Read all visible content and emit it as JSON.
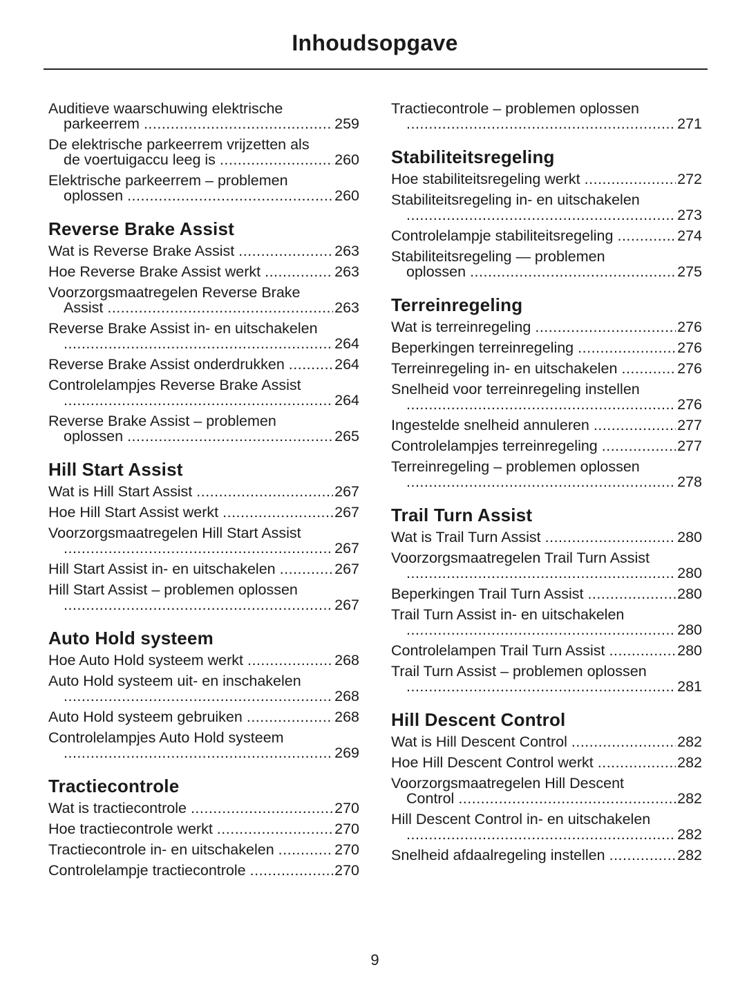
{
  "title": "Inhoudsopgave",
  "page_number": "9",
  "columns": [
    [
      {
        "heading": "",
        "entries": [
          {
            "text": "Auditieve waarschuwing elektrische",
            "cont": "parkeerrem",
            "page": "259"
          },
          {
            "text": "De elektrische parkeerrem vrijzetten als",
            "cont": "de voertuigaccu leeg is",
            "page": "260"
          },
          {
            "text": "Elektrische parkeerrem – problemen",
            "cont": "oplossen",
            "page": "260"
          }
        ]
      },
      {
        "heading": "Reverse Brake Assist",
        "entries": [
          {
            "text": "Wat is Reverse Brake Assist",
            "page": "263"
          },
          {
            "text": "Hoe Reverse Brake Assist werkt",
            "page": "263"
          },
          {
            "text": "Voorzorgsmaatregelen Reverse Brake",
            "cont": "Assist",
            "page": "263"
          },
          {
            "text": "Reverse Brake Assist in- en uitschakelen",
            "cont": "",
            "page": "264"
          },
          {
            "text": "Reverse Brake Assist onderdrukken",
            "page": "264"
          },
          {
            "text": "Controlelampjes Reverse Brake Assist",
            "cont": "",
            "page": "264"
          },
          {
            "text": "Reverse Brake Assist – problemen",
            "cont": "oplossen",
            "page": "265"
          }
        ]
      },
      {
        "heading": "Hill Start Assist",
        "entries": [
          {
            "text": "Wat is Hill Start Assist",
            "page": "267"
          },
          {
            "text": "Hoe Hill Start Assist werkt",
            "page": "267"
          },
          {
            "text": "Voorzorgsmaatregelen Hill Start Assist",
            "cont": "",
            "page": "267"
          },
          {
            "text": "Hill Start Assist in- en uitschakelen",
            "page": "267"
          },
          {
            "text": "Hill Start Assist – problemen oplossen",
            "cont": "",
            "page": "267"
          }
        ]
      },
      {
        "heading": "Auto Hold systeem",
        "entries": [
          {
            "text": "Hoe Auto Hold systeem werkt",
            "page": "268"
          },
          {
            "text": "Auto Hold systeem uit- en inschakelen",
            "cont": "",
            "page": "268"
          },
          {
            "text": "Auto Hold systeem gebruiken",
            "page": "268"
          },
          {
            "text": "Controlelampjes Auto Hold systeem",
            "cont": "",
            "page": "269"
          }
        ]
      },
      {
        "heading": "Tractiecontrole",
        "entries": [
          {
            "text": "Wat is tractiecontrole",
            "page": "270"
          },
          {
            "text": "Hoe tractiecontrole werkt",
            "page": "270"
          },
          {
            "text": "Tractiecontrole in- en uitschakelen",
            "page": "270"
          },
          {
            "text": "Controlelampje tractiecontrole",
            "page": "270"
          }
        ]
      }
    ],
    [
      {
        "heading": "",
        "entries": [
          {
            "text": "Tractiecontrole – problemen oplossen",
            "cont": "",
            "page": "271"
          }
        ]
      },
      {
        "heading": "Stabiliteitsregeling",
        "entries": [
          {
            "text": "Hoe stabiliteitsregeling werkt",
            "page": "272"
          },
          {
            "text": "Stabiliteitsregeling in- en uitschakelen",
            "cont": "",
            "page": "273"
          },
          {
            "text": "Controlelampje stabiliteitsregeling",
            "page": "274"
          },
          {
            "text": "Stabiliteitsregeling — problemen",
            "cont": "oplossen",
            "page": "275"
          }
        ]
      },
      {
        "heading": "Terreinregeling",
        "entries": [
          {
            "text": "Wat is terreinregeling",
            "page": "276"
          },
          {
            "text": "Beperkingen terreinregeling",
            "page": "276"
          },
          {
            "text": "Terreinregeling in- en uitschakelen",
            "page": "276"
          },
          {
            "text": "Snelheid voor terreinregeling instellen",
            "cont": "",
            "page": "276"
          },
          {
            "text": "Ingestelde snelheid annuleren",
            "page": "277"
          },
          {
            "text": "Controlelampjes terreinregeling",
            "page": "277"
          },
          {
            "text": "Terreinregeling – problemen oplossen",
            "cont": "",
            "page": "278"
          }
        ]
      },
      {
        "heading": "Trail Turn Assist",
        "entries": [
          {
            "text": "Wat is Trail Turn Assist",
            "page": "280"
          },
          {
            "text": "Voorzorgsmaatregelen Trail Turn Assist",
            "cont": "",
            "page": "280"
          },
          {
            "text": "Beperkingen Trail Turn Assist",
            "page": "280"
          },
          {
            "text": "Trail Turn Assist in- en uitschakelen",
            "cont": "",
            "page": "280"
          },
          {
            "text": "Controlelampen Trail Turn Assist",
            "page": "280"
          },
          {
            "text": "Trail Turn Assist – problemen oplossen",
            "cont": "",
            "page": "281"
          }
        ]
      },
      {
        "heading": "Hill Descent Control",
        "entries": [
          {
            "text": "Wat is Hill Descent Control",
            "page": "282"
          },
          {
            "text": "Hoe Hill Descent Control werkt",
            "page": "282"
          },
          {
            "text": "Voorzorgsmaatregelen Hill Descent",
            "cont": "Control",
            "page": "282"
          },
          {
            "text": "Hill Descent Control in- en uitschakelen",
            "cont": "",
            "page": "282"
          },
          {
            "text": "Snelheid afdaalregeling instellen",
            "page": "282"
          }
        ]
      }
    ]
  ]
}
